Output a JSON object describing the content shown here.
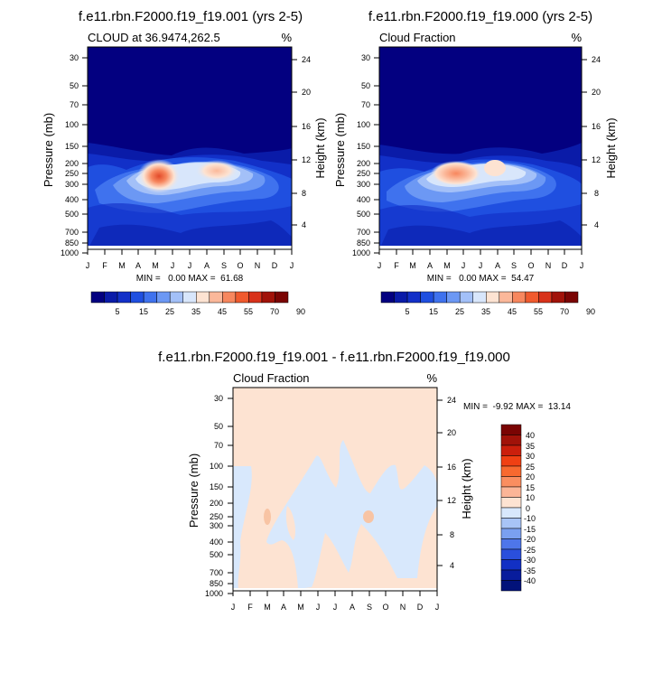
{
  "chart_data": [
    {
      "type": "heatmap",
      "plot": "contour",
      "title": "f.e11.rbn.F2000.f19_f19.001 (yrs 2-5)",
      "subtitle_left": "CLOUD at 36.9474,262.5",
      "subtitle_right": "%",
      "ylabel": "Pressure (mb)",
      "ylabel_right": "Height (km)",
      "x_ticks": [
        "J",
        "F",
        "M",
        "A",
        "M",
        "J",
        "J",
        "A",
        "S",
        "O",
        "N",
        "D",
        "J"
      ],
      "y_ticks": [
        "30",
        "50",
        "70",
        "100",
        "150",
        "200",
        "250",
        "300",
        "400",
        "500",
        "700",
        "850",
        "1000"
      ],
      "height_ticks": [
        "24",
        "20",
        "16",
        "12",
        "8",
        "4"
      ],
      "stats": "MIN =   0.00 MAX =  61.68",
      "min": 0.0,
      "max": 61.68,
      "colorbar_labels": [
        "5",
        "15",
        "25",
        "35",
        "45",
        "55",
        "70",
        "90"
      ]
    },
    {
      "type": "heatmap",
      "plot": "contour",
      "title": "f.e11.rbn.F2000.f19_f19.000 (yrs 2-5)",
      "subtitle_left": "Cloud Fraction",
      "subtitle_right": "%",
      "ylabel": "Pressure (mb)",
      "ylabel_right": "Height (km)",
      "x_ticks": [
        "J",
        "F",
        "M",
        "A",
        "M",
        "J",
        "J",
        "A",
        "S",
        "O",
        "N",
        "D",
        "J"
      ],
      "y_ticks": [
        "30",
        "50",
        "70",
        "100",
        "150",
        "200",
        "250",
        "300",
        "400",
        "500",
        "700",
        "850",
        "1000"
      ],
      "height_ticks": [
        "24",
        "20",
        "16",
        "12",
        "8",
        "4"
      ],
      "stats": "MIN =   0.00 MAX =  54.47",
      "min": 0.0,
      "max": 54.47,
      "colorbar_labels": [
        "5",
        "15",
        "25",
        "35",
        "45",
        "55",
        "70",
        "90"
      ]
    },
    {
      "type": "heatmap",
      "plot": "contour-difference",
      "title": "f.e11.rbn.F2000.f19_f19.001 - f.e11.rbn.F2000.f19_f19.000",
      "subtitle_left": "Cloud Fraction",
      "subtitle_right": "%",
      "ylabel": "Pressure (mb)",
      "ylabel_right": "Height (km)",
      "x_ticks": [
        "J",
        "F",
        "M",
        "A",
        "M",
        "J",
        "J",
        "A",
        "S",
        "O",
        "N",
        "D",
        "J"
      ],
      "y_ticks": [
        "30",
        "50",
        "70",
        "100",
        "150",
        "200",
        "250",
        "300",
        "400",
        "500",
        "700",
        "850",
        "1000"
      ],
      "height_ticks": [
        "24",
        "20",
        "16",
        "12",
        "8",
        "4"
      ],
      "stats": "MIN =  -9.92 MAX =  13.14",
      "min": -9.92,
      "max": 13.14,
      "colorbar_labels": [
        "40",
        "35",
        "30",
        "25",
        "20",
        "15",
        "10",
        "0",
        "-10",
        "-15",
        "-20",
        "-25",
        "-30",
        "-35",
        "-40"
      ]
    }
  ],
  "colors": {
    "sequential": [
      "#030080",
      "#0a1ba8",
      "#1230c8",
      "#1f4fe0",
      "#3f72ee",
      "#6c98f4",
      "#a3c0f8",
      "#d8e6fb",
      "#fde3d2",
      "#fbb89a",
      "#f7875e",
      "#f05a2e",
      "#d8321a",
      "#a11209",
      "#7a0403"
    ],
    "diverging": [
      "#7a0403",
      "#a11209",
      "#cb1f0c",
      "#f04013",
      "#f8692f",
      "#fa8e60",
      "#fbb597",
      "#fde3d2",
      "#d8e8fc",
      "#a8c4f6",
      "#7aa0f0",
      "#4e76ea",
      "#2a4fdc",
      "#1230c4",
      "#081c9c",
      "#02127a"
    ]
  }
}
